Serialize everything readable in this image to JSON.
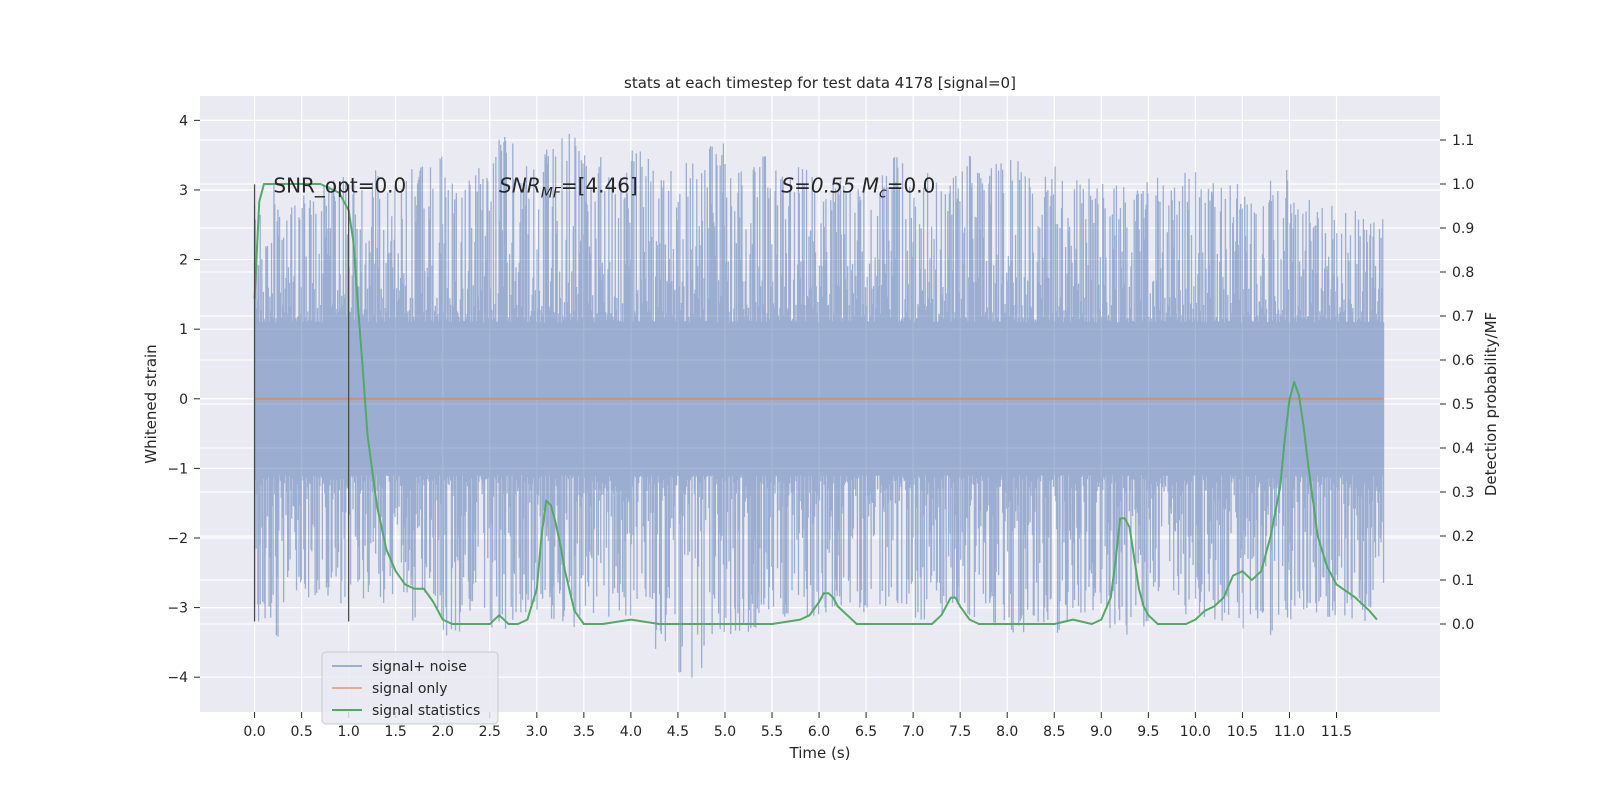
{
  "chart_data": {
    "type": "line",
    "title": "stats at each timestep for test data 4178 [signal=0]",
    "xlabel": "Time (s)",
    "ylabel": "Whitened strain",
    "y2label": "Detection probability/MF",
    "xlim": [
      -0.58,
      12.6
    ],
    "ylim": [
      -4.5,
      4.35
    ],
    "y2lim": [
      -0.2,
      1.2
    ],
    "xticks": [
      0.0,
      0.5,
      1.0,
      1.5,
      2.0,
      2.5,
      3.0,
      3.5,
      4.0,
      4.5,
      5.0,
      5.5,
      6.0,
      6.5,
      7.0,
      7.5,
      8.0,
      8.5,
      9.0,
      9.5,
      10.0,
      10.5,
      11.0,
      11.5
    ],
    "xtick_labels": [
      "0.0",
      "0.5",
      "1.0",
      "1.5",
      "2.0",
      "2.5",
      "3.0",
      "3.5",
      "4.0",
      "4.5",
      "5.0",
      "5.5",
      "6.0",
      "6.5",
      "7.0",
      "7.5",
      "8.0",
      "8.5",
      "9.0",
      "9.5",
      "10.0",
      "10.5",
      "11.0",
      "11.5"
    ],
    "yticks": [
      -4,
      -3,
      -2,
      -1,
      0,
      1,
      2,
      3,
      4
    ],
    "ytick_labels": [
      "−4",
      "−3",
      "−2",
      "−1",
      "0",
      "1",
      "2",
      "3",
      "4"
    ],
    "y2ticks": [
      0.0,
      0.1,
      0.2,
      0.3,
      0.4,
      0.5,
      0.6,
      0.7,
      0.8,
      0.9,
      1.0,
      1.1
    ],
    "y2tick_labels": [
      "0.0",
      "0.1",
      "0.2",
      "0.3",
      "0.4",
      "0.5",
      "0.6",
      "0.7",
      "0.8",
      "0.9",
      "1.0",
      "1.1"
    ],
    "grid": true,
    "legend_position": "lower-left",
    "annotations": [
      {
        "text": "SNR_opt=0.0",
        "x": 0.2,
        "y": 3.05
      },
      {
        "text": "SNR_MF=[4.46]",
        "x": 2.6,
        "y": 3.05
      },
      {
        "text": "S=0.55   M_c=0.0",
        "x": 5.6,
        "y": 3.05
      }
    ],
    "vlines": [
      0.0,
      1.0
    ],
    "vline_range": [
      -3.2,
      3.08
    ],
    "series": [
      {
        "name": "signal+ noise",
        "color": "#4c72b0",
        "kind": "noise",
        "x_range": [
          0.0,
          12.0
        ],
        "band_min": [
          -3.45,
          -2.95,
          -2.95,
          -3.0,
          -2.9,
          -3.0,
          -3.2,
          -3.3,
          -3.5,
          -3.1,
          -3.4,
          -3.1,
          -3.2,
          -3.3,
          -3.1,
          -3.2,
          -3.0,
          -3.6,
          -4.1,
          -3.6,
          -3.4,
          -3.3,
          -3.15,
          -3.3,
          -3.1,
          -3.2,
          -3.1,
          -3.0,
          -3.2,
          -3.1,
          -3.2,
          -3.3,
          -3.5,
          -3.3,
          -3.4,
          -3.2,
          -3.3,
          -3.4,
          -3.0,
          -3.2,
          -3.2,
          -3.2,
          -3.3,
          -3.4,
          -3.2,
          -3.2,
          -3.2,
          -3.2
        ],
        "band_max": [
          3.1,
          3.0,
          3.1,
          3.2,
          3.1,
          3.3,
          3.3,
          3.5,
          3.4,
          3.45,
          3.9,
          3.6,
          3.8,
          3.9,
          3.5,
          3.3,
          3.6,
          3.4,
          3.45,
          3.7,
          3.4,
          3.5,
          3.3,
          3.4,
          3.2,
          3.1,
          3.3,
          3.5,
          3.4,
          3.3,
          3.5,
          3.4,
          3.5,
          3.3,
          3.4,
          3.2,
          3.1,
          3.2,
          3.3,
          3.3,
          3.1,
          3.2,
          3.0,
          3.3,
          3.1,
          2.8,
          2.7,
          2.6
        ]
      },
      {
        "name": "signal only",
        "color": "#dd8452",
        "kind": "line",
        "x": [
          0.0,
          12.0
        ],
        "y": [
          0.0,
          0.0
        ]
      },
      {
        "name": "signal statistics",
        "color": "#55a868",
        "kind": "line",
        "axis": "right",
        "x": [
          0.0,
          0.05,
          0.1,
          0.15,
          0.2,
          0.3,
          0.5,
          0.7,
          0.8,
          0.9,
          0.95,
          1.0,
          1.05,
          1.1,
          1.15,
          1.2,
          1.3,
          1.4,
          1.5,
          1.6,
          1.7,
          1.8,
          1.9,
          2.0,
          2.1,
          2.2,
          2.3,
          2.4,
          2.5,
          2.6,
          2.7,
          2.8,
          2.9,
          3.0,
          3.05,
          3.1,
          3.15,
          3.2,
          3.25,
          3.3,
          3.4,
          3.5,
          3.7,
          4.0,
          4.3,
          4.5,
          5.0,
          5.5,
          5.8,
          5.9,
          6.0,
          6.05,
          6.1,
          6.15,
          6.2,
          6.3,
          6.4,
          6.5,
          6.7,
          7.0,
          7.2,
          7.3,
          7.4,
          7.45,
          7.5,
          7.6,
          7.7,
          8.0,
          8.5,
          8.7,
          8.9,
          9.0,
          9.1,
          9.15,
          9.2,
          9.25,
          9.3,
          9.35,
          9.4,
          9.45,
          9.5,
          9.6,
          9.7,
          9.9,
          10.0,
          10.1,
          10.2,
          10.3,
          10.4,
          10.5,
          10.6,
          10.7,
          10.8,
          10.9,
          10.95,
          11.0,
          11.05,
          11.1,
          11.15,
          11.2,
          11.3,
          11.4,
          11.5,
          11.7,
          11.85,
          11.93
        ],
        "y": [
          0.74,
          0.96,
          1.0,
          1.0,
          1.0,
          1.0,
          1.0,
          1.0,
          0.99,
          0.98,
          0.96,
          0.94,
          0.87,
          0.72,
          0.58,
          0.43,
          0.27,
          0.17,
          0.12,
          0.09,
          0.08,
          0.08,
          0.05,
          0.01,
          0.0,
          0.0,
          0.0,
          0.0,
          0.0,
          0.02,
          0.0,
          0.0,
          0.01,
          0.08,
          0.2,
          0.28,
          0.27,
          0.23,
          0.18,
          0.12,
          0.03,
          0.0,
          0.0,
          0.01,
          0.0,
          0.0,
          0.0,
          0.0,
          0.01,
          0.02,
          0.05,
          0.07,
          0.07,
          0.06,
          0.04,
          0.02,
          0.0,
          0.0,
          0.0,
          0.0,
          0.0,
          0.02,
          0.06,
          0.06,
          0.04,
          0.01,
          0.0,
          0.0,
          0.0,
          0.01,
          0.0,
          0.01,
          0.06,
          0.14,
          0.24,
          0.24,
          0.22,
          0.15,
          0.08,
          0.04,
          0.02,
          0.0,
          0.0,
          0.0,
          0.01,
          0.03,
          0.04,
          0.06,
          0.11,
          0.12,
          0.1,
          0.12,
          0.2,
          0.31,
          0.42,
          0.51,
          0.55,
          0.52,
          0.45,
          0.36,
          0.2,
          0.13,
          0.09,
          0.06,
          0.03,
          0.01
        ]
      }
    ]
  }
}
